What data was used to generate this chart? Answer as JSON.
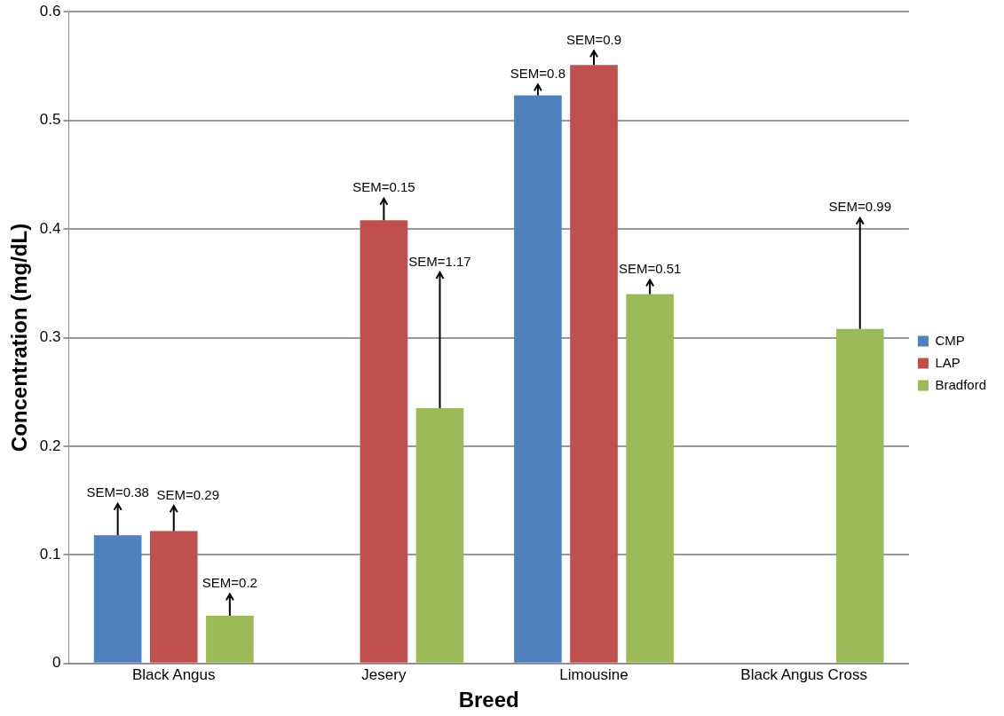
{
  "chart_data": {
    "type": "bar",
    "xlabel": "Breed",
    "ylabel": "Concentration (mg/dL)",
    "categories": [
      "Black Angus",
      "Jesery",
      "Limousine",
      "Black Angus Cross"
    ],
    "series": [
      {
        "name": "CMP",
        "color": "#4f81bd",
        "values": [
          0.118,
          null,
          0.523,
          null
        ],
        "errors": [
          [
            0.118,
            0.147
          ],
          null,
          [
            0.523,
            0.533
          ],
          null
        ]
      },
      {
        "name": "LAP",
        "color": "#c0504d",
        "values": [
          0.122,
          0.408,
          0.551,
          null
        ],
        "errors": [
          [
            0.122,
            0.145
          ],
          [
            0.408,
            0.428
          ],
          [
            0.551,
            0.564
          ],
          null
        ]
      },
      {
        "name": "Bradford",
        "color": "#9bbb59",
        "values": [
          0.044,
          0.235,
          0.34,
          0.308
        ],
        "errors": [
          [
            0.044,
            0.064
          ],
          [
            0.235,
            0.36
          ],
          [
            0.34,
            0.353
          ],
          [
            0.308,
            0.41
          ]
        ]
      }
    ],
    "annotations": [
      "SEM=0.38",
      "SEM=0.29",
      "SEM=0.2",
      "SEM=0.15",
      "SEM=1.17",
      "SEM=0.8",
      "SEM=0.9",
      "SEM=0.51",
      "SEM=0.99"
    ],
    "ylim": [
      0,
      0.6
    ],
    "yticks": [
      0,
      0.1,
      0.2,
      0.3,
      0.4,
      0.5,
      0.6
    ],
    "grid": "y",
    "legend": "right"
  }
}
